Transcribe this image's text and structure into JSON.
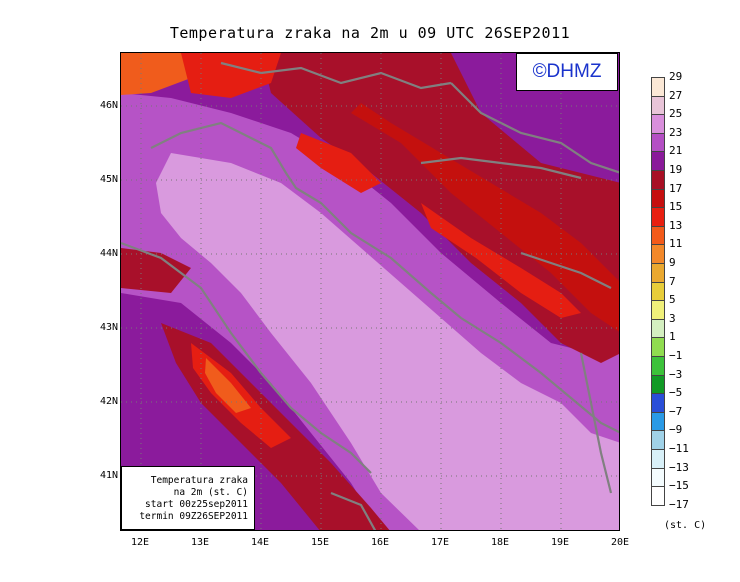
{
  "title": "Temperatura zraka na 2m u 09 UTC 26SEP2011",
  "logo": "©DHMZ",
  "info_box": {
    "line1": "Temperatura zraka",
    "line2": "na 2m (st. C)",
    "line3": "start 00z25sep2011",
    "line4": "termin 09Z26SEP2011"
  },
  "axes": {
    "lat_ticks": [
      "46N",
      "45N",
      "44N",
      "43N",
      "42N",
      "41N"
    ],
    "lon_ticks": [
      "12E",
      "13E",
      "14E",
      "15E",
      "16E",
      "17E",
      "18E",
      "19E",
      "20E"
    ]
  },
  "colorbar": {
    "unit": "(st. C)",
    "labels": [
      "29",
      "27",
      "25",
      "23",
      "21",
      "19",
      "17",
      "15",
      "13",
      "11",
      "9",
      "7",
      "5",
      "3",
      "1",
      "−1",
      "−3",
      "−5",
      "−7",
      "−9",
      "−11",
      "−13",
      "−15",
      "−17"
    ],
    "colors": [
      "#fbe8d6",
      "#e8c4d8",
      "#d98fdc",
      "#b44fc4",
      "#8a1a9a",
      "#a80f24",
      "#c50f0f",
      "#e81f10",
      "#f25a1a",
      "#f2882a",
      "#eaa830",
      "#e8cd3a",
      "#f0f07a",
      "#d4efc0",
      "#90dc50",
      "#3cc23a",
      "#109a25",
      "#2a4ed8",
      "#2a9ae6",
      "#a0d2e8",
      "#d8f0f8",
      "#f4fcfe",
      "#ffffff"
    ],
    "palette": {
      "c29": "#fbe8d6",
      "c27": "#e8c4d8",
      "c25": "#d99ade",
      "c23": "#b653c6",
      "c21": "#8b1b9c",
      "c19": "#a8102a",
      "c17": "#c4100e",
      "c15": "#e51e12",
      "c13": "#f05c1c",
      "c11": "#f08a2a",
      "coast": "#808080"
    }
  }
}
